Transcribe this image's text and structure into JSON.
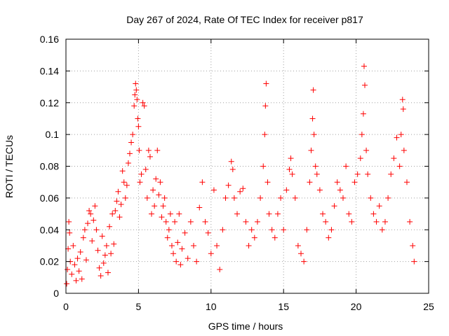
{
  "chart_data": {
    "type": "scatter",
    "title": "Day 267 of 2024, Rate Of TEC Index for receiver p817",
    "xlabel": "GPS time / hours",
    "ylabel": "ROTI / TECUs",
    "xlim": [
      0,
      25
    ],
    "ylim": [
      0,
      0.16
    ],
    "xticks": [
      0,
      5,
      10,
      15,
      20,
      25
    ],
    "yticks": [
      0,
      0.02,
      0.04,
      0.06,
      0.08,
      0.1,
      0.12,
      0.14,
      0.16
    ],
    "xtick_labels": [
      "0",
      "5",
      "10",
      "15",
      "20",
      "25"
    ],
    "ytick_labels": [
      "0",
      "0.02",
      "0.04",
      "0.06",
      "0.08",
      "0.1",
      "0.12",
      "0.14",
      "0.16"
    ],
    "grid": true,
    "marker": "plus",
    "color": "#ff0000",
    "series": [
      {
        "points": [
          [
            0.05,
            0.006
          ],
          [
            0.1,
            0.015
          ],
          [
            0.15,
            0.028
          ],
          [
            0.2,
            0.045
          ],
          [
            0.25,
            0.038
          ],
          [
            0.3,
            0.02
          ],
          [
            0.4,
            0.012
          ],
          [
            0.5,
            0.03
          ],
          [
            0.6,
            0.018
          ],
          [
            0.7,
            0.008
          ],
          [
            0.8,
            0.022
          ],
          [
            0.9,
            0.014
          ],
          [
            1.0,
            0.026
          ],
          [
            1.1,
            0.009
          ],
          [
            1.2,
            0.035
          ],
          [
            1.3,
            0.04
          ],
          [
            1.4,
            0.021
          ],
          [
            1.5,
            0.044
          ],
          [
            1.6,
            0.052
          ],
          [
            1.7,
            0.05
          ],
          [
            1.8,
            0.033
          ],
          [
            1.9,
            0.046
          ],
          [
            2.0,
            0.055
          ],
          [
            2.1,
            0.04
          ],
          [
            2.2,
            0.027
          ],
          [
            2.3,
            0.016
          ],
          [
            2.4,
            0.011
          ],
          [
            2.5,
            0.036
          ],
          [
            2.6,
            0.019
          ],
          [
            2.7,
            0.024
          ],
          [
            2.8,
            0.03
          ],
          [
            2.9,
            0.013
          ],
          [
            3.0,
            0.042
          ],
          [
            3.1,
            0.025
          ],
          [
            3.2,
            0.05
          ],
          [
            3.3,
            0.031
          ],
          [
            3.4,
            0.052
          ],
          [
            3.5,
            0.058
          ],
          [
            3.6,
            0.064
          ],
          [
            3.7,
            0.048
          ],
          [
            3.8,
            0.056
          ],
          [
            3.9,
            0.077
          ],
          [
            4.0,
            0.07
          ],
          [
            4.1,
            0.06
          ],
          [
            4.2,
            0.068
          ],
          [
            4.3,
            0.082
          ],
          [
            4.4,
            0.088
          ],
          [
            4.5,
            0.095
          ],
          [
            4.6,
            0.1
          ],
          [
            4.7,
            0.118
          ],
          [
            4.75,
            0.125
          ],
          [
            4.8,
            0.132
          ],
          [
            4.85,
            0.128
          ],
          [
            4.9,
            0.122
          ],
          [
            4.95,
            0.11
          ],
          [
            5.0,
            0.105
          ],
          [
            5.05,
            0.09
          ],
          [
            5.1,
            0.07
          ],
          [
            5.2,
            0.075
          ],
          [
            5.3,
            0.12
          ],
          [
            5.4,
            0.118
          ],
          [
            5.5,
            0.078
          ],
          [
            5.6,
            0.06
          ],
          [
            5.7,
            0.09
          ],
          [
            5.8,
            0.086
          ],
          [
            5.9,
            0.05
          ],
          [
            6.0,
            0.065
          ],
          [
            6.1,
            0.055
          ],
          [
            6.2,
            0.072
          ],
          [
            6.3,
            0.09
          ],
          [
            6.4,
            0.062
          ],
          [
            6.5,
            0.07
          ],
          [
            6.6,
            0.048
          ],
          [
            6.7,
            0.055
          ],
          [
            6.8,
            0.06
          ],
          [
            6.9,
            0.045
          ],
          [
            7.0,
            0.035
          ],
          [
            7.1,
            0.04
          ],
          [
            7.2,
            0.05
          ],
          [
            7.3,
            0.03
          ],
          [
            7.4,
            0.025
          ],
          [
            7.5,
            0.045
          ],
          [
            7.6,
            0.02
          ],
          [
            7.7,
            0.032
          ],
          [
            7.8,
            0.05
          ],
          [
            7.9,
            0.018
          ],
          [
            8.0,
            0.028
          ],
          [
            8.2,
            0.038
          ],
          [
            8.4,
            0.022
          ],
          [
            8.6,
            0.045
          ],
          [
            8.8,
            0.03
          ],
          [
            9.0,
            0.02
          ],
          [
            9.2,
            0.054
          ],
          [
            9.4,
            0.07
          ],
          [
            9.6,
            0.045
          ],
          [
            9.8,
            0.038
          ],
          [
            10.0,
            0.025
          ],
          [
            10.2,
            0.065
          ],
          [
            10.4,
            0.03
          ],
          [
            10.6,
            0.015
          ],
          [
            10.8,
            0.04
          ],
          [
            11.0,
            0.06
          ],
          [
            11.2,
            0.068
          ],
          [
            11.4,
            0.083
          ],
          [
            11.5,
            0.078
          ],
          [
            11.6,
            0.06
          ],
          [
            11.8,
            0.05
          ],
          [
            12.0,
            0.064
          ],
          [
            12.2,
            0.066
          ],
          [
            12.4,
            0.045
          ],
          [
            12.6,
            0.03
          ],
          [
            12.8,
            0.04
          ],
          [
            13.0,
            0.035
          ],
          [
            13.2,
            0.045
          ],
          [
            13.4,
            0.06
          ],
          [
            13.6,
            0.08
          ],
          [
            13.7,
            0.1
          ],
          [
            13.75,
            0.118
          ],
          [
            13.8,
            0.132
          ],
          [
            13.9,
            0.07
          ],
          [
            14.0,
            0.05
          ],
          [
            14.2,
            0.04
          ],
          [
            14.4,
            0.035
          ],
          [
            14.6,
            0.05
          ],
          [
            14.8,
            0.06
          ],
          [
            15.0,
            0.04
          ],
          [
            15.2,
            0.065
          ],
          [
            15.4,
            0.078
          ],
          [
            15.5,
            0.085
          ],
          [
            15.6,
            0.075
          ],
          [
            15.8,
            0.06
          ],
          [
            16.0,
            0.03
          ],
          [
            16.2,
            0.025
          ],
          [
            16.4,
            0.02
          ],
          [
            16.6,
            0.04
          ],
          [
            16.8,
            0.07
          ],
          [
            16.9,
            0.09
          ],
          [
            17.0,
            0.11
          ],
          [
            17.05,
            0.128
          ],
          [
            17.1,
            0.1
          ],
          [
            17.2,
            0.08
          ],
          [
            17.3,
            0.075
          ],
          [
            17.5,
            0.065
          ],
          [
            17.7,
            0.05
          ],
          [
            17.9,
            0.045
          ],
          [
            18.1,
            0.035
          ],
          [
            18.3,
            0.04
          ],
          [
            18.5,
            0.055
          ],
          [
            18.7,
            0.07
          ],
          [
            18.9,
            0.065
          ],
          [
            19.1,
            0.06
          ],
          [
            19.3,
            0.08
          ],
          [
            19.5,
            0.05
          ],
          [
            19.7,
            0.045
          ],
          [
            19.9,
            0.07
          ],
          [
            20.1,
            0.075
          ],
          [
            20.3,
            0.085
          ],
          [
            20.4,
            0.1
          ],
          [
            20.5,
            0.113
          ],
          [
            20.55,
            0.143
          ],
          [
            20.6,
            0.131
          ],
          [
            20.7,
            0.09
          ],
          [
            20.8,
            0.075
          ],
          [
            21.0,
            0.06
          ],
          [
            21.2,
            0.05
          ],
          [
            21.4,
            0.045
          ],
          [
            21.6,
            0.055
          ],
          [
            21.8,
            0.04
          ],
          [
            22.0,
            0.045
          ],
          [
            22.2,
            0.06
          ],
          [
            22.4,
            0.075
          ],
          [
            22.6,
            0.085
          ],
          [
            22.8,
            0.098
          ],
          [
            23.0,
            0.08
          ],
          [
            23.1,
            0.1
          ],
          [
            23.2,
            0.122
          ],
          [
            23.25,
            0.116
          ],
          [
            23.3,
            0.09
          ],
          [
            23.5,
            0.07
          ],
          [
            23.7,
            0.045
          ],
          [
            23.9,
            0.03
          ],
          [
            24.0,
            0.02
          ]
        ]
      }
    ]
  }
}
